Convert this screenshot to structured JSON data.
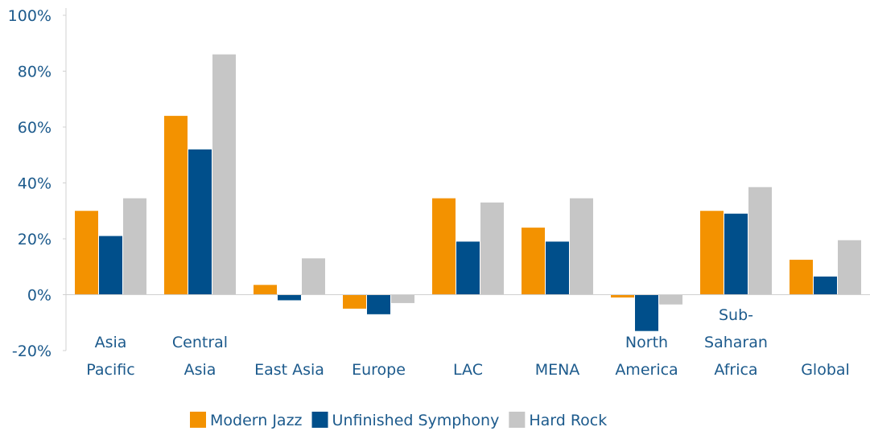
{
  "chart_data": {
    "type": "bar",
    "categories": [
      [
        "Asia",
        "Pacific"
      ],
      [
        "Central",
        "Asia"
      ],
      [
        "East Asia"
      ],
      [
        "Europe"
      ],
      [
        "LAC"
      ],
      [
        "MENA"
      ],
      [
        "North",
        "America"
      ],
      [
        "Sub-",
        "Saharan",
        "Africa"
      ],
      [
        "Global"
      ]
    ],
    "series": [
      {
        "name": "Modern Jazz",
        "color": "#f39200",
        "values": [
          30,
          64,
          3.5,
          -5,
          34.5,
          24,
          -1,
          30,
          12.5
        ]
      },
      {
        "name": "Unfinished Symphony",
        "color": "#004f8b",
        "values": [
          21,
          52,
          -2,
          -7,
          19,
          19,
          -13,
          29,
          6.5
        ]
      },
      {
        "name": "Hard Rock",
        "color": "#c6c6c6",
        "values": [
          34.5,
          86,
          13,
          -3,
          33,
          34.5,
          -3.5,
          38.5,
          19.5
        ]
      }
    ],
    "ylim": [
      -20,
      100
    ],
    "yticks": [
      {
        "value": -20,
        "label": "-20%"
      },
      {
        "value": 0,
        "label": "0%"
      },
      {
        "value": 20,
        "label": "20%"
      },
      {
        "value": 40,
        "label": "40%"
      },
      {
        "value": 60,
        "label": "60%"
      },
      {
        "value": 80,
        "label": "80%"
      },
      {
        "value": 100,
        "label": "100%"
      }
    ],
    "legend": "bottom"
  }
}
